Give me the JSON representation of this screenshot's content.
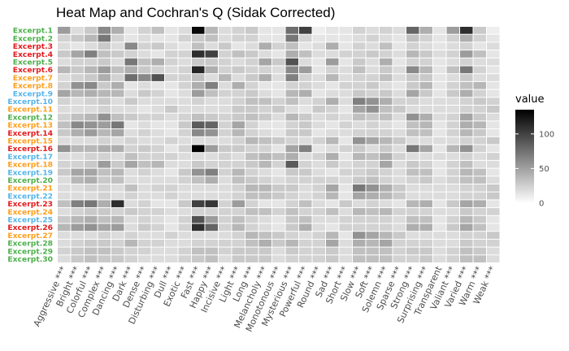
{
  "chart_data": {
    "type": "heatmap",
    "title": "Heat Map and Cochran's Q (Sidak Corrected)",
    "legend": {
      "title": "value",
      "ticks": [
        0,
        50,
        100
      ],
      "range": [
        0,
        135
      ],
      "low_color": "#ffffff",
      "high_color": "#000000",
      "position": "right"
    },
    "columns": [
      "Aggressive ***",
      "Bright ***",
      "Colorful ***",
      "Complex ***",
      "Dancing ***",
      "Dark ***",
      "Dense ***",
      "Disturbing ***",
      "Dull ***",
      "Exotic ***",
      "Fast ***",
      "Happy ***",
      "Incisive ***",
      "Light ***",
      "Long ***",
      "Melancholy ***",
      "Monotonous ***",
      "Mysterious ***",
      "Powerful ***",
      "Round ***",
      "Sad ***",
      "Short ***",
      "Slow ***",
      "Soft ***",
      "Solemn ***",
      "Sparse ***",
      "Strong ***",
      "Surprising ***",
      "Transparent",
      "Valiant ***",
      "Varied ***",
      "Warm ***",
      "Weak ***"
    ],
    "rows": [
      {
        "label": "Excerpt.1",
        "color": "#4daf4a"
      },
      {
        "label": "Excerpt.2",
        "color": "#4daf4a"
      },
      {
        "label": "Excerpt.3",
        "color": "#e41a1c"
      },
      {
        "label": "Excerpt.4",
        "color": "#e41a1c"
      },
      {
        "label": "Excerpt.5",
        "color": "#4daf4a"
      },
      {
        "label": "Excerpt.6",
        "color": "#e41a1c"
      },
      {
        "label": "Excerpt.7",
        "color": "#ff9e1b"
      },
      {
        "label": "Excerpt.8",
        "color": "#ff9e1b"
      },
      {
        "label": "Excerpt.9",
        "color": "#56b4e9"
      },
      {
        "label": "Excerpt.10",
        "color": "#56b4e9"
      },
      {
        "label": "Excerpt.11",
        "color": "#ff9e1b"
      },
      {
        "label": "Excerpt.12",
        "color": "#4daf4a"
      },
      {
        "label": "Excerpt.13",
        "color": "#ff9e1b"
      },
      {
        "label": "Excerpt.14",
        "color": "#e41a1c"
      },
      {
        "label": "Excerpt.15",
        "color": "#ff9e1b"
      },
      {
        "label": "Excerpt.16",
        "color": "#e41a1c"
      },
      {
        "label": "Excerpt.17",
        "color": "#56b4e9"
      },
      {
        "label": "Excerpt.18",
        "color": "#ff9e1b"
      },
      {
        "label": "Excerpt.19",
        "color": "#56b4e9"
      },
      {
        "label": "Excerpt.20",
        "color": "#4daf4a"
      },
      {
        "label": "Excerpt.21",
        "color": "#ff9e1b"
      },
      {
        "label": "Excerpt.22",
        "color": "#56b4e9"
      },
      {
        "label": "Excerpt.23",
        "color": "#e41a1c"
      },
      {
        "label": "Excerpt.24",
        "color": "#ff9e1b"
      },
      {
        "label": "Excerpt.25",
        "color": "#56b4e9"
      },
      {
        "label": "Excerpt.26",
        "color": "#e41a1c"
      },
      {
        "label": "Excerpt.27",
        "color": "#ff9e1b"
      },
      {
        "label": "Excerpt.28",
        "color": "#4daf4a"
      },
      {
        "label": "Excerpt.29",
        "color": "#4daf4a"
      },
      {
        "label": "Excerpt.30",
        "color": "#4daf4a"
      }
    ],
    "values": [
      [
        50,
        15,
        25,
        60,
        40,
        10,
        20,
        30,
        10,
        15,
        130,
        35,
        15,
        20,
        25,
        10,
        10,
        75,
        100,
        5,
        10,
        10,
        20,
        15,
        20,
        15,
        80,
        40,
        10,
        50,
        110,
        25,
        5
      ],
      [
        20,
        25,
        35,
        70,
        20,
        10,
        15,
        10,
        10,
        20,
        25,
        30,
        15,
        20,
        20,
        10,
        10,
        70,
        20,
        10,
        10,
        10,
        15,
        20,
        15,
        10,
        30,
        20,
        10,
        20,
        40,
        20,
        10
      ],
      [
        15,
        10,
        15,
        25,
        15,
        60,
        20,
        25,
        15,
        10,
        30,
        15,
        25,
        10,
        15,
        40,
        20,
        30,
        10,
        15,
        40,
        10,
        20,
        15,
        30,
        10,
        20,
        15,
        10,
        15,
        20,
        10,
        15
      ],
      [
        25,
        45,
        65,
        30,
        25,
        20,
        15,
        10,
        20,
        20,
        110,
        100,
        20,
        30,
        25,
        15,
        10,
        40,
        30,
        15,
        15,
        20,
        20,
        25,
        20,
        15,
        35,
        25,
        15,
        20,
        50,
        30,
        10
      ],
      [
        15,
        20,
        20,
        25,
        15,
        70,
        30,
        40,
        20,
        15,
        25,
        25,
        20,
        15,
        20,
        45,
        25,
        90,
        15,
        10,
        50,
        10,
        25,
        15,
        40,
        10,
        20,
        20,
        10,
        15,
        20,
        15,
        15
      ],
      [
        35,
        25,
        35,
        50,
        30,
        40,
        25,
        20,
        15,
        20,
        115,
        40,
        20,
        25,
        20,
        20,
        15,
        60,
        50,
        10,
        20,
        15,
        30,
        15,
        25,
        15,
        60,
        35,
        10,
        30,
        70,
        20,
        10
      ],
      [
        15,
        20,
        25,
        40,
        20,
        75,
        60,
        90,
        20,
        20,
        30,
        15,
        35,
        15,
        25,
        40,
        15,
        65,
        20,
        15,
        35,
        15,
        20,
        20,
        30,
        15,
        25,
        25,
        10,
        15,
        25,
        15,
        15
      ],
      [
        20,
        55,
        60,
        25,
        40,
        10,
        15,
        10,
        10,
        20,
        40,
        65,
        15,
        40,
        20,
        10,
        10,
        20,
        20,
        15,
        10,
        20,
        20,
        25,
        15,
        10,
        25,
        35,
        10,
        20,
        30,
        35,
        10
      ],
      [
        45,
        35,
        40,
        35,
        35,
        15,
        25,
        20,
        10,
        15,
        50,
        30,
        20,
        20,
        25,
        15,
        10,
        35,
        40,
        10,
        15,
        15,
        25,
        20,
        25,
        15,
        45,
        25,
        10,
        25,
        40,
        20,
        10
      ],
      [
        20,
        15,
        20,
        25,
        15,
        25,
        15,
        15,
        15,
        15,
        20,
        15,
        15,
        20,
        30,
        30,
        20,
        30,
        15,
        20,
        40,
        15,
        65,
        55,
        40,
        20,
        20,
        15,
        15,
        15,
        20,
        25,
        20
      ],
      [
        15,
        15,
        15,
        20,
        15,
        15,
        10,
        15,
        25,
        15,
        15,
        15,
        15,
        25,
        25,
        20,
        25,
        15,
        10,
        25,
        20,
        10,
        45,
        55,
        30,
        25,
        15,
        15,
        15,
        15,
        20,
        20,
        25
      ],
      [
        20,
        30,
        35,
        55,
        30,
        25,
        20,
        20,
        15,
        20,
        30,
        25,
        20,
        25,
        30,
        25,
        15,
        35,
        25,
        15,
        20,
        15,
        30,
        25,
        30,
        15,
        55,
        40,
        15,
        20,
        45,
        25,
        15
      ],
      [
        30,
        60,
        55,
        50,
        70,
        10,
        15,
        10,
        10,
        25,
        85,
        80,
        20,
        45,
        20,
        10,
        10,
        20,
        25,
        15,
        10,
        20,
        15,
        20,
        15,
        10,
        30,
        35,
        10,
        20,
        40,
        35,
        10
      ],
      [
        25,
        40,
        50,
        35,
        45,
        15,
        20,
        15,
        10,
        20,
        60,
        55,
        20,
        35,
        20,
        15,
        10,
        25,
        25,
        10,
        15,
        15,
        20,
        20,
        20,
        15,
        30,
        30,
        10,
        20,
        35,
        25,
        10
      ],
      [
        15,
        15,
        15,
        20,
        15,
        20,
        15,
        15,
        20,
        15,
        15,
        15,
        15,
        20,
        35,
        30,
        25,
        20,
        15,
        20,
        35,
        10,
        55,
        45,
        35,
        25,
        15,
        15,
        15,
        15,
        20,
        20,
        25
      ],
      [
        55,
        35,
        35,
        40,
        40,
        20,
        25,
        20,
        10,
        20,
        135,
        50,
        25,
        25,
        20,
        20,
        10,
        45,
        65,
        10,
        15,
        20,
        25,
        15,
        25,
        15,
        70,
        45,
        10,
        35,
        55,
        20,
        10
      ],
      [
        15,
        15,
        20,
        20,
        15,
        30,
        20,
        20,
        20,
        15,
        15,
        15,
        20,
        15,
        30,
        35,
        30,
        40,
        15,
        20,
        40,
        10,
        35,
        30,
        40,
        20,
        15,
        15,
        15,
        15,
        20,
        15,
        20
      ],
      [
        20,
        20,
        25,
        50,
        25,
        45,
        30,
        35,
        15,
        15,
        25,
        20,
        20,
        20,
        25,
        35,
        20,
        85,
        20,
        15,
        25,
        15,
        20,
        20,
        45,
        15,
        25,
        20,
        10,
        20,
        30,
        15,
        15
      ],
      [
        25,
        45,
        45,
        30,
        35,
        15,
        20,
        15,
        10,
        25,
        55,
        65,
        20,
        35,
        20,
        15,
        10,
        25,
        25,
        15,
        10,
        20,
        20,
        25,
        20,
        15,
        30,
        30,
        10,
        20,
        35,
        30,
        10
      ],
      [
        15,
        35,
        40,
        25,
        30,
        15,
        15,
        15,
        15,
        20,
        30,
        40,
        15,
        30,
        25,
        20,
        15,
        20,
        20,
        20,
        20,
        15,
        25,
        30,
        20,
        15,
        20,
        25,
        15,
        20,
        30,
        30,
        15
      ],
      [
        15,
        15,
        20,
        20,
        15,
        30,
        15,
        20,
        20,
        15,
        15,
        15,
        15,
        20,
        35,
        35,
        25,
        25,
        15,
        20,
        45,
        10,
        70,
        55,
        40,
        25,
        15,
        15,
        15,
        15,
        20,
        20,
        25
      ],
      [
        15,
        15,
        15,
        20,
        15,
        20,
        15,
        15,
        20,
        15,
        15,
        15,
        15,
        20,
        30,
        30,
        25,
        20,
        15,
        20,
        35,
        10,
        45,
        40,
        35,
        25,
        15,
        15,
        15,
        15,
        20,
        20,
        25
      ],
      [
        30,
        65,
        70,
        40,
        110,
        15,
        20,
        10,
        10,
        25,
        100,
        105,
        20,
        50,
        20,
        10,
        10,
        20,
        30,
        15,
        10,
        25,
        15,
        20,
        15,
        10,
        35,
        40,
        10,
        25,
        45,
        40,
        10
      ],
      [
        15,
        20,
        25,
        25,
        20,
        25,
        20,
        20,
        15,
        15,
        20,
        20,
        20,
        20,
        30,
        30,
        20,
        30,
        20,
        20,
        30,
        15,
        35,
        30,
        35,
        20,
        20,
        20,
        15,
        15,
        25,
        20,
        20
      ],
      [
        25,
        35,
        40,
        30,
        35,
        15,
        20,
        15,
        10,
        20,
        90,
        50,
        20,
        30,
        20,
        15,
        10,
        25,
        30,
        15,
        15,
        20,
        20,
        20,
        20,
        15,
        30,
        30,
        10,
        20,
        35,
        25,
        10
      ],
      [
        35,
        50,
        55,
        45,
        50,
        15,
        25,
        20,
        10,
        20,
        110,
        80,
        20,
        35,
        20,
        15,
        10,
        25,
        40,
        15,
        10,
        20,
        20,
        20,
        20,
        15,
        40,
        40,
        10,
        25,
        45,
        30,
        10
      ],
      [
        15,
        15,
        15,
        20,
        15,
        20,
        15,
        15,
        20,
        15,
        15,
        15,
        15,
        20,
        35,
        30,
        25,
        20,
        15,
        20,
        35,
        10,
        55,
        45,
        35,
        25,
        15,
        15,
        15,
        15,
        20,
        20,
        25
      ],
      [
        15,
        20,
        25,
        25,
        20,
        35,
        20,
        20,
        15,
        15,
        20,
        20,
        20,
        20,
        30,
        40,
        25,
        35,
        20,
        20,
        45,
        15,
        40,
        35,
        45,
        20,
        20,
        20,
        15,
        15,
        25,
        20,
        20
      ],
      [
        20,
        25,
        30,
        30,
        25,
        20,
        20,
        15,
        15,
        20,
        30,
        30,
        20,
        25,
        25,
        25,
        15,
        25,
        20,
        20,
        25,
        15,
        30,
        30,
        30,
        20,
        25,
        25,
        15,
        20,
        30,
        25,
        15
      ],
      [
        15,
        25,
        30,
        25,
        25,
        20,
        15,
        15,
        15,
        20,
        25,
        30,
        15,
        25,
        25,
        25,
        15,
        20,
        20,
        20,
        25,
        15,
        30,
        30,
        30,
        20,
        20,
        25,
        15,
        20,
        30,
        30,
        15
      ]
    ]
  }
}
